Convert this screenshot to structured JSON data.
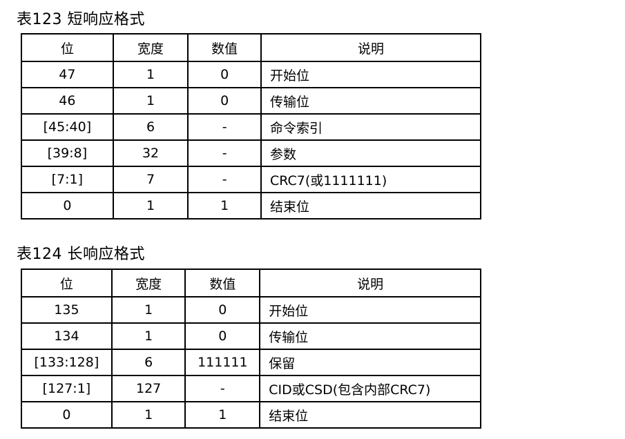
{
  "table1": {
    "title": "表123  短响应格式",
    "headers": [
      "位",
      "宽度",
      "数值",
      "说明"
    ],
    "rows": [
      [
        "47",
        "1",
        "0",
        "开始位"
      ],
      [
        "46",
        "1",
        "0",
        "传输位"
      ],
      [
        "[45:40]",
        "6",
        "-",
        "命令索引"
      ],
      [
        "[39:8]",
        "32",
        "-",
        "参数"
      ],
      [
        "[7:1]",
        "7",
        "-",
        "CRC7(或1111111)"
      ],
      [
        "0",
        "1",
        "1",
        "结束位"
      ]
    ]
  },
  "table2": {
    "title": "表124  长响应格式",
    "headers": [
      "位",
      "宽度",
      "数值",
      "说明"
    ],
    "rows": [
      [
        "135",
        "1",
        "0",
        "开始位"
      ],
      [
        "134",
        "1",
        "0",
        "传输位"
      ],
      [
        "[133:128]",
        "6",
        "111111",
        "保留"
      ],
      [
        "[127:1]",
        "127",
        "-",
        "CID或CSD(包含内部CRC7)"
      ],
      [
        "0",
        "1",
        "1",
        "结束位"
      ]
    ]
  }
}
